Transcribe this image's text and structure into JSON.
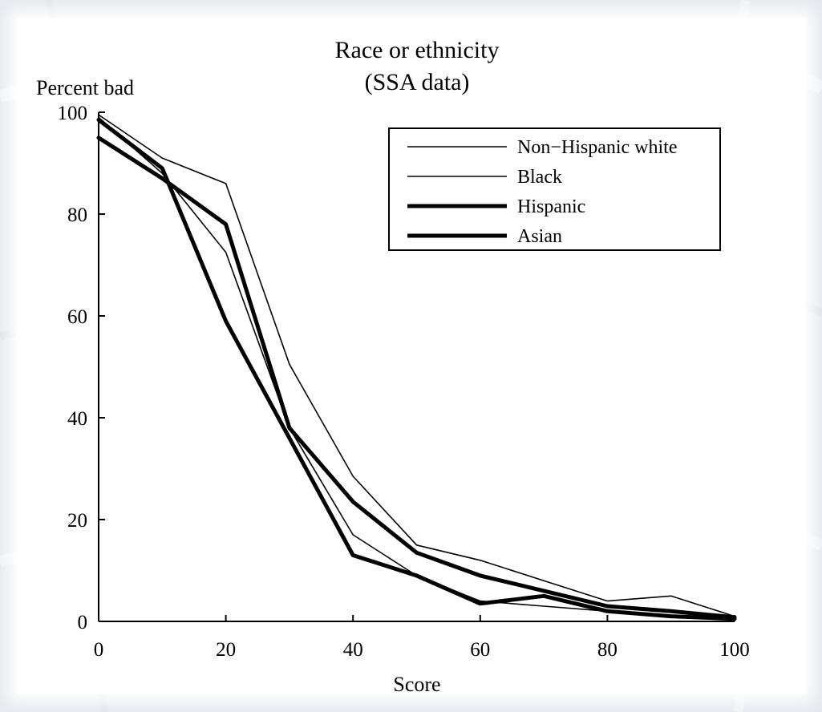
{
  "chart_data": {
    "type": "line",
    "title": "Race or ethnicity",
    "subtitle": "(SSA data)",
    "xlabel": "Score",
    "ylabel": "Percent bad",
    "xlim": [
      0,
      100
    ],
    "ylim": [
      0,
      100
    ],
    "xticks": [
      0,
      20,
      40,
      60,
      80,
      100
    ],
    "yticks": [
      0,
      20,
      40,
      60,
      80,
      100
    ],
    "grid": false,
    "legend_position": "top-right",
    "x": [
      0,
      10,
      20,
      30,
      40,
      50,
      60,
      70,
      80,
      90,
      100
    ],
    "series": [
      {
        "name": "Non−Hispanic white",
        "values": [
          99.5,
          91,
          86,
          50.5,
          28.5,
          15,
          12,
          8,
          4,
          5,
          1
        ],
        "line_weight": "thin"
      },
      {
        "name": "Black",
        "values": [
          99,
          88,
          72.5,
          38,
          17,
          9,
          4,
          3,
          2,
          1,
          1
        ],
        "line_weight": "thin"
      },
      {
        "name": "Hispanic",
        "values": [
          95,
          87,
          78,
          38,
          23.5,
          13.5,
          9,
          6,
          3,
          2,
          0.8
        ],
        "line_weight": "thick"
      },
      {
        "name": "Asian",
        "values": [
          98.5,
          89,
          59,
          36,
          13,
          9,
          3.5,
          5,
          2,
          1,
          0.5
        ],
        "line_weight": "thick"
      }
    ],
    "colors": {
      "lines": "#000000",
      "background": "#ffffff"
    }
  }
}
